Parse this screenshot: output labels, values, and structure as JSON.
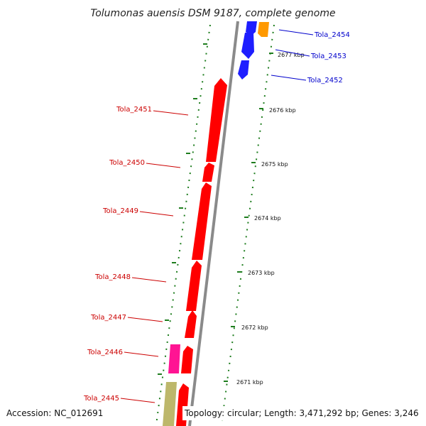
{
  "title": "Tolumonas auensis DSM 9187, complete genome",
  "accession_text": "Accession: NC_012691",
  "topology_text": "Topology: circular; Length: 3,471,292 bp; Genes: 3,246",
  "colors": {
    "backbone": "#8a8a8a",
    "tick": "#1e7d1e",
    "label_red": "#cc0000",
    "label_blue": "#0000cc",
    "red_gene": "#ff0000",
    "blue_gene": "#1e1eff",
    "orange_gene": "#ff9900",
    "pink_gene": "#ff1493",
    "khaki_gene": "#bdb76b"
  },
  "ticks": [
    "2677 kbp",
    "2676 kbp",
    "2675 kbp",
    "2674 kbp",
    "2673 kbp",
    "2672 kbp",
    "2671 kbp"
  ],
  "labels": {
    "tola_2454": "Tola_2454",
    "tola_2453": "Tola_2453",
    "tola_2452": "Tola_2452",
    "tola_2451": "Tola_2451",
    "tola_2450": "Tola_2450",
    "tola_2449": "Tola_2449",
    "tola_2448": "Tola_2448",
    "tola_2447": "Tola_2447",
    "tola_2446": "Tola_2446",
    "tola_2445": "Tola_2445"
  }
}
